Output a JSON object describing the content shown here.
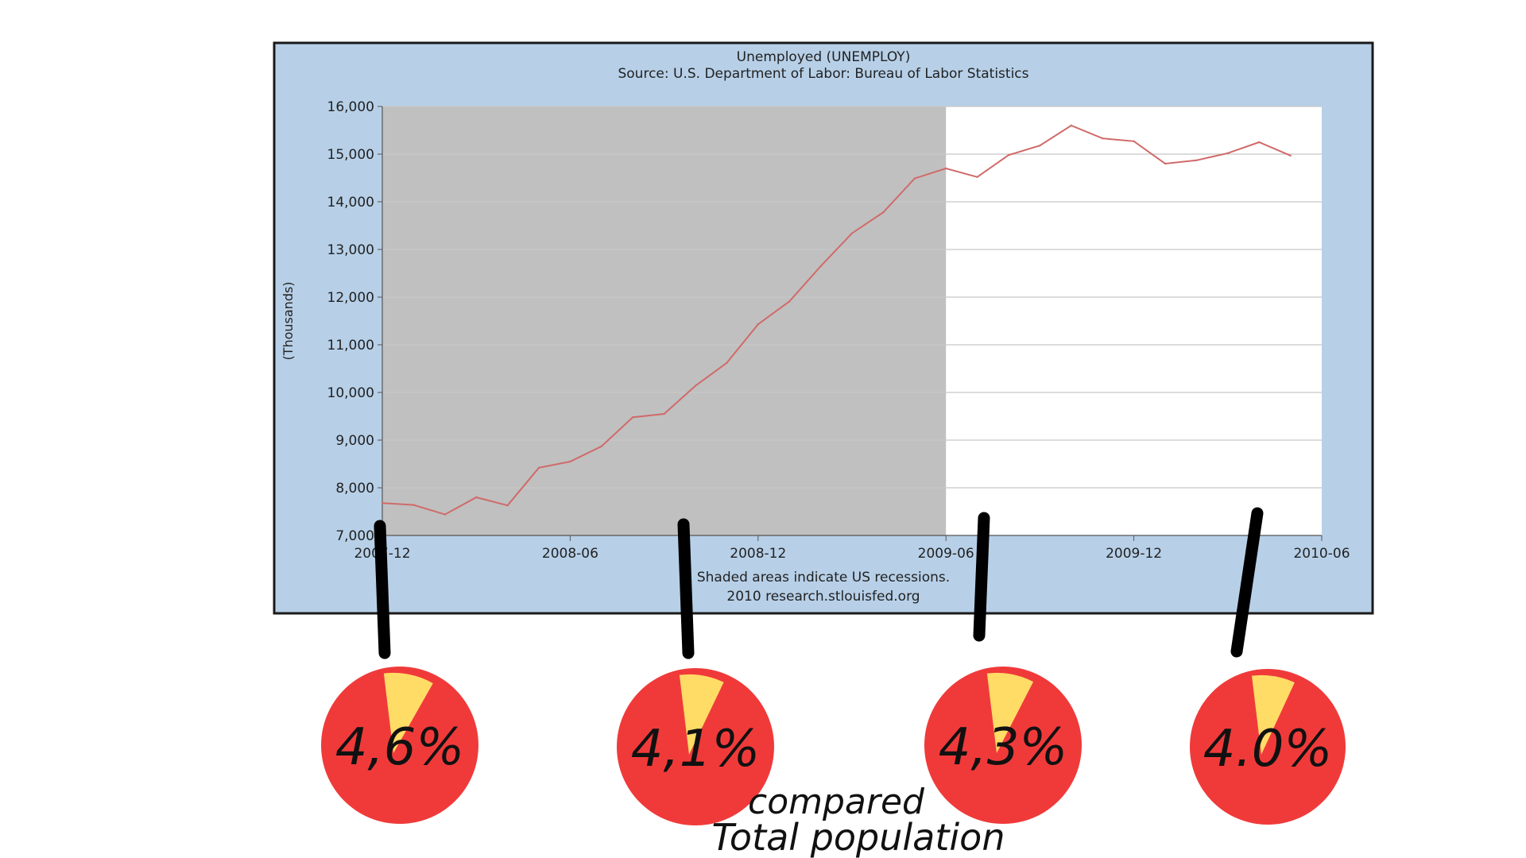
{
  "chart_data": {
    "type": "line",
    "title": "Unemployed (UNEMPLOY)",
    "subtitle": "Source: U.S. Department of Labor: Bureau of Labor Statistics",
    "ylabel": "(Thousands)",
    "xlabel": "",
    "ylim": [
      7000,
      16000
    ],
    "yticks": [
      "7,000",
      "8,000",
      "9,000",
      "10,000",
      "11,000",
      "12,000",
      "13,000",
      "14,000",
      "15,000",
      "16,000"
    ],
    "xticks": [
      "2007-12",
      "2008-06",
      "2008-12",
      "2009-06",
      "2009-12",
      "2010-06"
    ],
    "x_start": "2007-12",
    "x_end": "2010-06",
    "recession_shading": {
      "start": "2007-12",
      "end": "2009-06"
    },
    "footer": [
      "Shaded areas indicate US recessions.",
      "2010 research.stlouisfed.org"
    ],
    "grid": true,
    "colors": {
      "frame": "#b7d0e8",
      "plot_bg": "#ffffff",
      "recession": "#c0c0c0",
      "line": "#d06a6a"
    },
    "series": [
      {
        "x": [
          "2007-12",
          "2008-01",
          "2008-02",
          "2008-03",
          "2008-04",
          "2008-05",
          "2008-06",
          "2008-07",
          "2008-08",
          "2008-09",
          "2008-10",
          "2008-11",
          "2008-12",
          "2009-01",
          "2009-02",
          "2009-03",
          "2009-04",
          "2009-05",
          "2009-06",
          "2009-07",
          "2009-08",
          "2009-09",
          "2009-10",
          "2009-11",
          "2009-12",
          "2010-01",
          "2010-02",
          "2010-03",
          "2010-04",
          "2010-05"
        ],
        "values": [
          7680,
          7640,
          7440,
          7800,
          7630,
          8420,
          8550,
          8870,
          9480,
          9550,
          10140,
          10620,
          11430,
          11910,
          12650,
          13340,
          13780,
          14490,
          14700,
          14520,
          14980,
          15180,
          15600,
          15330,
          15270,
          14800,
          14870,
          15020,
          15250,
          14970
        ]
      }
    ]
  },
  "annotations": {
    "pies": [
      {
        "label": "4,6%",
        "fraction": 0.046
      },
      {
        "label": "4,1%",
        "fraction": 0.041
      },
      {
        "label": "4,3%",
        "fraction": 0.043
      },
      {
        "label": "4.0%",
        "fraction": 0.04
      }
    ],
    "caption_line1": "compared",
    "caption_line2": "Total population",
    "colors": {
      "pie": "#f03a3a",
      "slice": "#ffdc66",
      "marker": "#000000"
    }
  }
}
